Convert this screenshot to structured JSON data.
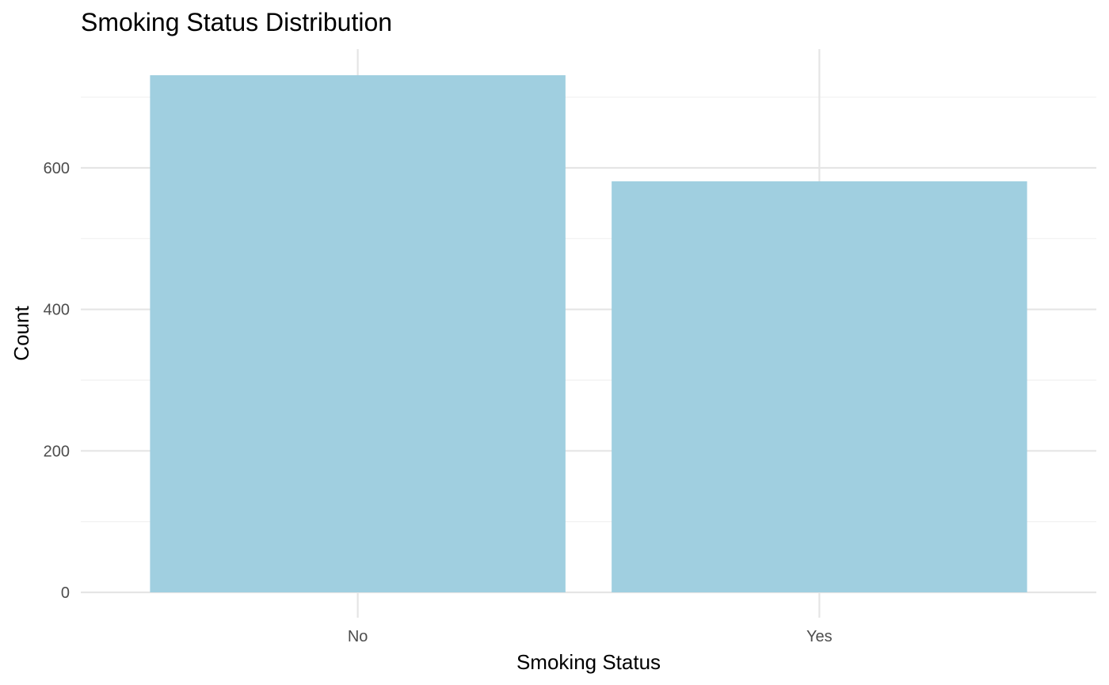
{
  "chart_data": {
    "type": "bar",
    "title": "Smoking Status Distribution",
    "xlabel": "Smoking Status",
    "ylabel": "Count",
    "categories": [
      "No",
      "Yes"
    ],
    "values": [
      731,
      581
    ],
    "ylim": [
      0,
      730
    ],
    "yticks": [
      0,
      200,
      400,
      600
    ],
    "grid": true,
    "bar_color": "#a0cfe0",
    "grid_major_color": "#e5e5e5",
    "grid_minor_color": "#f0f0f0"
  }
}
